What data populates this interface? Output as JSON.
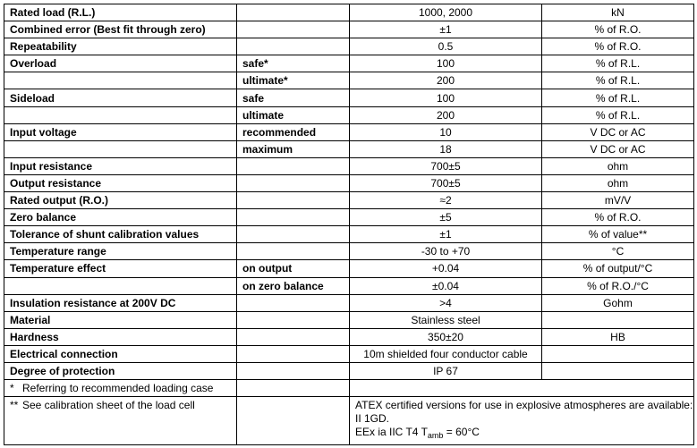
{
  "rows": [
    {
      "label": "Rated load (R.L.)",
      "sub": "",
      "value": "1000, 2000",
      "unit": "kN"
    },
    {
      "label": "Combined error (Best fit through zero)",
      "sub": "",
      "value": "±1",
      "unit": "% of R.O."
    },
    {
      "label": "Repeatability",
      "sub": "",
      "value": "0.5",
      "unit": "% of R.O."
    },
    {
      "label": "Overload",
      "sub": "safe*",
      "value": "100",
      "unit": "% of R.L."
    },
    {
      "label": "",
      "sub": "ultimate*",
      "value": "200",
      "unit": "% of R.L."
    },
    {
      "label": "Sideload",
      "sub": "safe",
      "value": "100",
      "unit": "% of R.L."
    },
    {
      "label": "",
      "sub": "ultimate",
      "value": "200",
      "unit": "% of R.L."
    },
    {
      "label": "Input voltage",
      "sub": "recommended",
      "value": "10",
      "unit": "V DC or AC"
    },
    {
      "label": "",
      "sub": "maximum",
      "value": "18",
      "unit": "V DC or AC"
    },
    {
      "label": "Input resistance",
      "sub": "",
      "value": "700±5",
      "unit": "ohm"
    },
    {
      "label": "Output resistance",
      "sub": "",
      "value": "700±5",
      "unit": "ohm"
    },
    {
      "label": "Rated output (R.O.)",
      "sub": "",
      "value": "≈2",
      "unit": "mV/V"
    },
    {
      "label": "Zero balance",
      "sub": "",
      "value": "±5",
      "unit": "% of R.O."
    },
    {
      "label": "Tolerance of shunt calibration values",
      "sub": "",
      "value": "±1",
      "unit": "% of value**"
    },
    {
      "label": "Temperature range",
      "sub": "",
      "value": "-30 to +70",
      "unit": "°C"
    },
    {
      "label": "Temperature effect",
      "sub": "on output",
      "value": "+0.04",
      "unit": "% of output/°C"
    },
    {
      "label": "",
      "sub": "on zero balance",
      "value": "±0.04",
      "unit": "% of R.O./°C"
    },
    {
      "label": "Insulation resistance at 200V DC",
      "sub": "",
      "value": ">4",
      "unit": "Gohm"
    },
    {
      "label": "Material",
      "sub": "",
      "value": "Stainless steel",
      "unit": ""
    },
    {
      "label": "Hardness",
      "sub": "",
      "value": "350±20",
      "unit": "HB"
    },
    {
      "label": "Electrical connection",
      "sub": "",
      "value": "10m shielded four conductor cable",
      "unit": ""
    },
    {
      "label": "Degree of protection",
      "sub": "",
      "value": "IP 67",
      "unit": ""
    }
  ],
  "footnotes": [
    {
      "mark": "*",
      "text": "Referring to recommended loading case"
    },
    {
      "mark": "**",
      "text": "See calibration sheet of the load cell"
    }
  ],
  "atex": {
    "line1": "ATEX certified versions for use in explosive atmospheres are available: II 1GD.",
    "line2_prefix": "EEx ia IIC T4 T",
    "line2_sub": "amb",
    "line2_suffix": " = 60°C"
  }
}
